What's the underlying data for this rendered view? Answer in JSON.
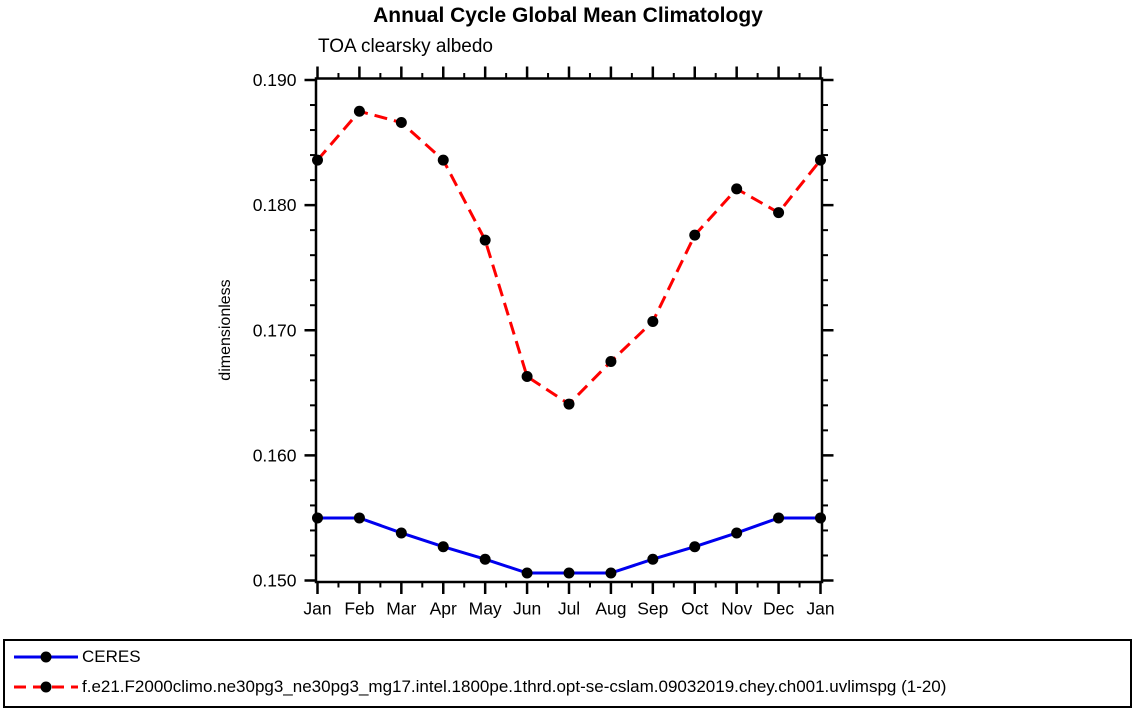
{
  "header": {
    "title": "Annual Cycle Global Mean Climatology",
    "subtitle": "TOA clearsky albedo"
  },
  "chart_data": {
    "type": "line",
    "title": "Annual Cycle Global Mean Climatology",
    "subtitle": "TOA clearsky albedo",
    "xlabel": "",
    "ylabel": "dimensionless",
    "categories": [
      "Jan",
      "Feb",
      "Mar",
      "Apr",
      "May",
      "Jun",
      "Jul",
      "Aug",
      "Sep",
      "Oct",
      "Nov",
      "Dec",
      "Jan"
    ],
    "ylim": [
      0.15,
      0.19
    ],
    "ytick_major_interval": 0.01,
    "ytick_minor_interval": 0.002,
    "ytick_labels": [
      "0.150",
      "0.160",
      "0.170",
      "0.180",
      "0.190"
    ],
    "xtick_minor": "half-month",
    "grid": false,
    "tick_style": "outward-all-sides",
    "legend_position": "bottom-left-boxed",
    "axis_color": "#000000",
    "marker_color": "#000000",
    "series": [
      {
        "name": "CERES",
        "color": "#0000ee",
        "line_style": "solid",
        "marker": "filled-circle",
        "values": [
          0.155,
          0.155,
          0.1538,
          0.1527,
          0.1517,
          0.1506,
          0.1506,
          0.1506,
          0.1517,
          0.1527,
          0.1538,
          0.155,
          0.155
        ]
      },
      {
        "name": "f.e21.F2000climo.ne30pg3_ne30pg3_mg17.intel.1800pe.1thrd.opt-se-cslam.09032019.chey.ch001.uvlimspg (1-20)",
        "color": "#ff0000",
        "line_style": "dashed",
        "marker": "filled-circle",
        "values": [
          0.1836,
          0.1875,
          0.1866,
          0.1836,
          0.1772,
          0.1663,
          0.1641,
          0.1675,
          0.1707,
          0.1776,
          0.1813,
          0.1794,
          0.1836
        ]
      }
    ]
  }
}
